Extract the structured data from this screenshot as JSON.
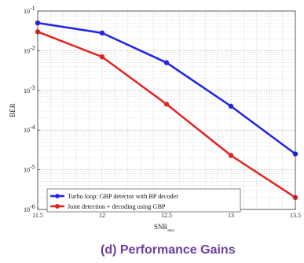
{
  "chart_data": {
    "type": "line",
    "xlabel": "SNR",
    "xlabel_sub": "elec",
    "ylabel": "BER",
    "x_ticks": [
      "11.5",
      "12",
      "12.5",
      "13",
      "13.5"
    ],
    "xlim": [
      11.5,
      13.5
    ],
    "ylim": [
      1e-06,
      0.1
    ],
    "y_scale": "log",
    "y_tick_bases": [
      "10",
      "10",
      "10",
      "10",
      "10",
      "10"
    ],
    "y_tick_exponents": [
      "-6",
      "-5",
      "-4",
      "-3",
      "-2",
      "-1"
    ],
    "grid": true,
    "legend_position": "bottom-left",
    "series": [
      {
        "name": "Turbo loop: GBP detector with BP decoder",
        "color": "#2323e6",
        "x": [
          11.5,
          12,
          12.5,
          13,
          13.5
        ],
        "y": [
          0.05,
          0.028,
          0.005,
          0.0004,
          2.5e-05
        ]
      },
      {
        "name": "Joint detection + decoding using GBP",
        "color": "#e32222",
        "x": [
          11.5,
          12,
          12.5,
          13,
          13.5
        ],
        "y": [
          0.03,
          0.007,
          0.00045,
          2.3e-05,
          2e-06
        ]
      }
    ]
  },
  "caption": "(d) Performance Gains"
}
